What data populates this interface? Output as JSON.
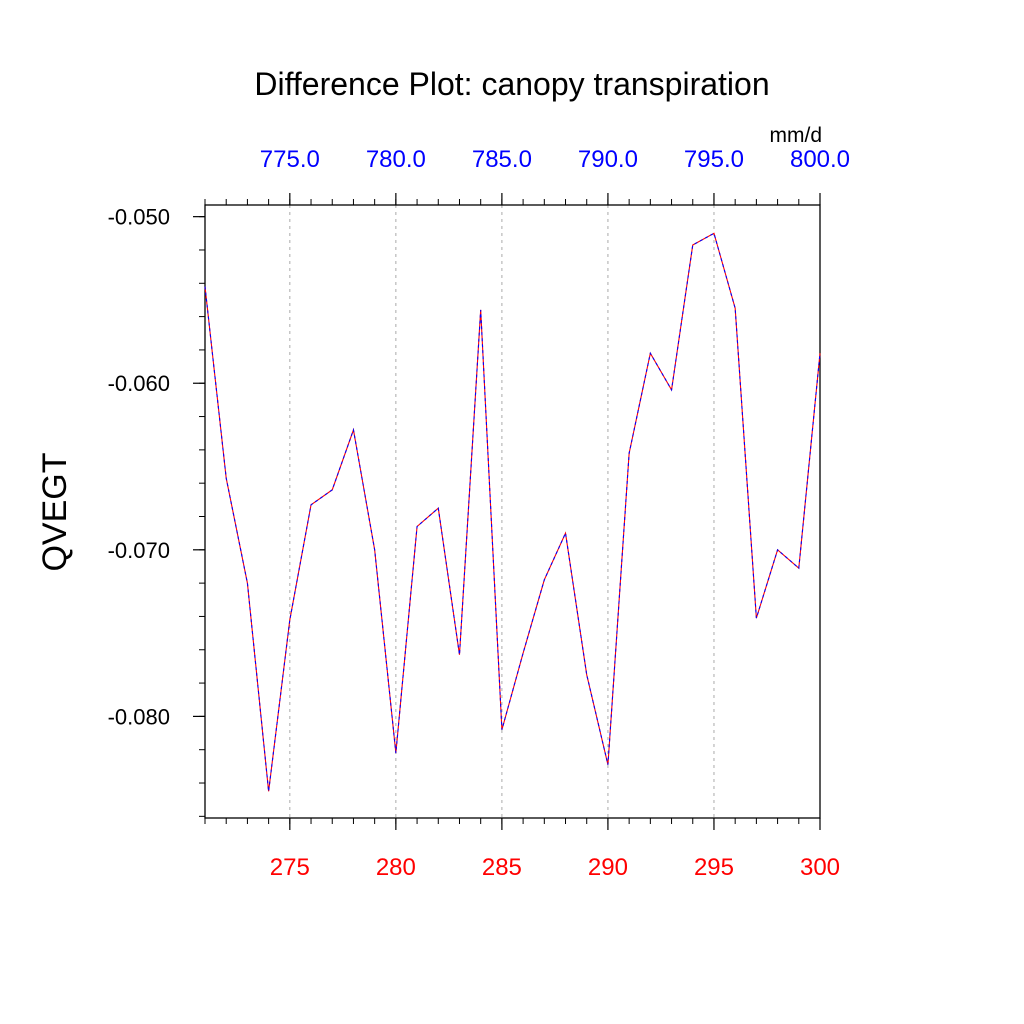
{
  "chart_data": {
    "type": "line",
    "title": "Difference Plot: canopy transpiration",
    "ylabel": "QVEGT",
    "units_label": "mm/d",
    "xlim": [
      271,
      300
    ],
    "ylim": [
      -0.0861,
      -0.0493
    ],
    "x_bottom_ticks": [
      275,
      280,
      285,
      290,
      295,
      300
    ],
    "x_bottom_tick_labels": [
      "275",
      "280",
      "285",
      "290",
      "295",
      "300"
    ],
    "x_top_ticks": [
      275,
      280,
      285,
      290,
      295,
      300
    ],
    "x_top_tick_labels": [
      "775.0",
      "780.0",
      "785.0",
      "790.0",
      "795.0",
      "800.0"
    ],
    "y_ticks": [
      -0.05,
      -0.06,
      -0.07,
      -0.08
    ],
    "y_tick_labels": [
      "-0.050",
      "-0.060",
      "-0.070",
      "-0.080"
    ],
    "grid": "vertical dashed at major x ticks",
    "colors": {
      "bottom_tick_labels": "#ff0000",
      "top_tick_labels": "#0000ff",
      "line_primary": "#ff0000",
      "line_overlay": "#0000ff",
      "grid": "#aaaaaa"
    },
    "series": [
      {
        "x": [
          271,
          272,
          273,
          274,
          275,
          276,
          277,
          278,
          279,
          280,
          281,
          282,
          283,
          284,
          285,
          286,
          287,
          288,
          289,
          290,
          291,
          292,
          293,
          294,
          295,
          296,
          297,
          298,
          299,
          300
        ],
        "values": [
          -0.0542,
          -0.0657,
          -0.072,
          -0.0845,
          -0.0742,
          -0.0673,
          -0.0664,
          -0.0628,
          -0.07,
          -0.0822,
          -0.0686,
          -0.0675,
          -0.0763,
          -0.0556,
          -0.0808,
          -0.0762,
          -0.0718,
          -0.069,
          -0.0775,
          -0.0829,
          -0.0642,
          -0.0582,
          -0.0604,
          -0.0517,
          -0.051,
          -0.0555,
          -0.0741,
          -0.07,
          -0.0711,
          -0.0582
        ]
      }
    ]
  }
}
